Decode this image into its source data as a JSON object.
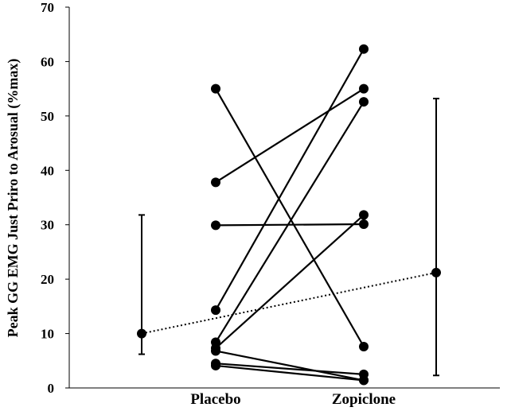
{
  "chart_data": {
    "type": "scatter",
    "title": "",
    "xlabel": "",
    "ylabel": "Peak GG EMG Just Priro to Arosual (%max)",
    "ylim": [
      0,
      70
    ],
    "yticks": [
      0,
      10,
      20,
      30,
      40,
      50,
      60,
      70
    ],
    "categories": [
      "Placebo",
      "Zopiclone"
    ],
    "grid": false,
    "legend": "none",
    "colors": {
      "ink": "#000000"
    },
    "paired_subjects": [
      {
        "placebo": 55.0,
        "zopiclone": 7.6
      },
      {
        "placebo": 37.8,
        "zopiclone": 55.0
      },
      {
        "placebo": 29.9,
        "zopiclone": 30.1
      },
      {
        "placebo": 14.3,
        "zopiclone": 62.3
      },
      {
        "placebo": 8.4,
        "zopiclone": 52.6
      },
      {
        "placebo": 7.3,
        "zopiclone": 31.8
      },
      {
        "placebo": 6.8,
        "zopiclone": 1.4
      },
      {
        "placebo": 4.5,
        "zopiclone": 2.5
      },
      {
        "placebo": 4.1,
        "zopiclone": 1.4
      }
    ],
    "group_means": [
      {
        "group": "Placebo",
        "mean": 10.0,
        "lower": 6.2,
        "upper": 31.8
      },
      {
        "group": "Zopiclone",
        "mean": 21.2,
        "lower": 2.3,
        "upper": 53.2
      }
    ],
    "mean_connector": "dotted"
  }
}
